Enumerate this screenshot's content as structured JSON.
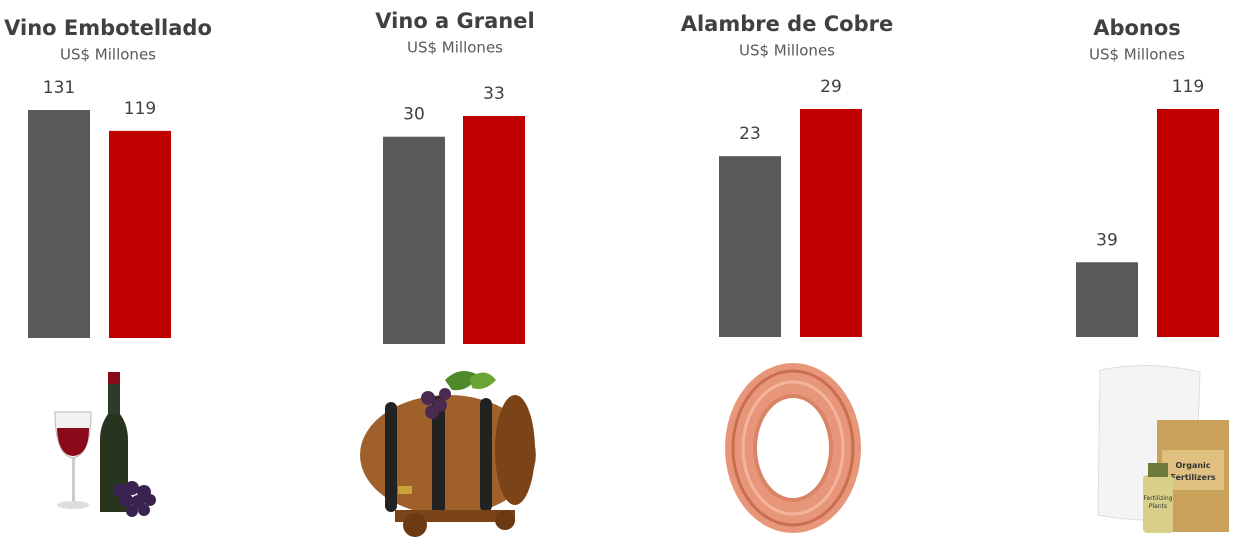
{
  "chart_data": [
    {
      "type": "bar",
      "title": "Vino Embotellado",
      "subtitle": "US$ Millones",
      "values": [
        131,
        119
      ],
      "colors": [
        "#595959",
        "#c00000"
      ]
    },
    {
      "type": "bar",
      "title": "Vino a Granel",
      "subtitle": "US$ Millones",
      "values": [
        30,
        33
      ],
      "colors": [
        "#595959",
        "#c00000"
      ]
    },
    {
      "type": "bar",
      "title": "Alambre de Cobre",
      "subtitle": "US$ Millones",
      "values": [
        23,
        29
      ],
      "colors": [
        "#595959",
        "#c00000"
      ]
    },
    {
      "type": "bar",
      "title": "Abonos",
      "subtitle": "US$ Millones",
      "values": [
        39,
        119
      ],
      "colors": [
        "#595959",
        "#c00000"
      ]
    }
  ]
}
